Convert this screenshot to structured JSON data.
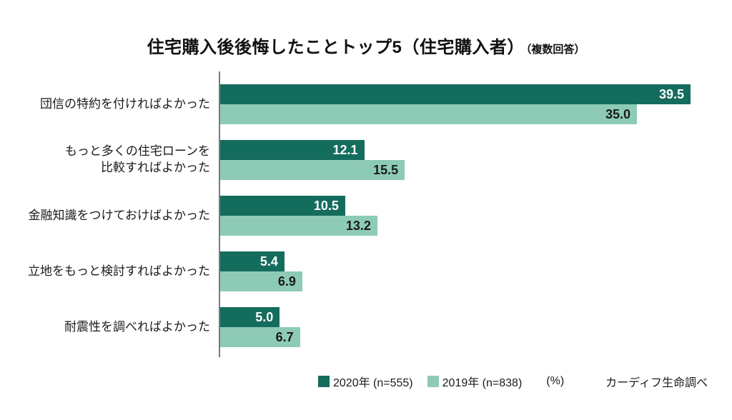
{
  "title": {
    "main": "住宅購入後後悔したことトップ5（住宅購入者）",
    "note": "（複数回答）"
  },
  "legend": {
    "series1": "2020年 (n=555)",
    "series2": "2019年 (n=838)",
    "unit": "(%)",
    "source": "カーディフ生命調べ"
  },
  "colors": {
    "series1": "#146c5d",
    "series2": "#8ecbb7",
    "value_on_dark": "#ffffff",
    "value_on_light": "#1a1a1a",
    "axis": "#7a7a7a"
  },
  "chart_data": {
    "type": "bar",
    "orientation": "horizontal",
    "title": "住宅購入後後悔したことトップ5（住宅購入者）（複数回答）",
    "unit": "%",
    "xlim": [
      0,
      41
    ],
    "grid": false,
    "legend_position": "bottom",
    "categories": [
      "団信の特約を付ければよかった",
      "もっと多くの住宅ローンを\n比較すればよかった",
      "金融知識をつけておけばよかった",
      "立地をもっと検討すればよかった",
      "耐震性を調べればよかった"
    ],
    "series": [
      {
        "name": "2020年 (n=555)",
        "values": [
          39.5,
          12.1,
          10.5,
          5.4,
          5.0
        ]
      },
      {
        "name": "2019年 (n=838)",
        "values": [
          35.0,
          15.5,
          13.2,
          6.9,
          6.7
        ]
      }
    ]
  }
}
